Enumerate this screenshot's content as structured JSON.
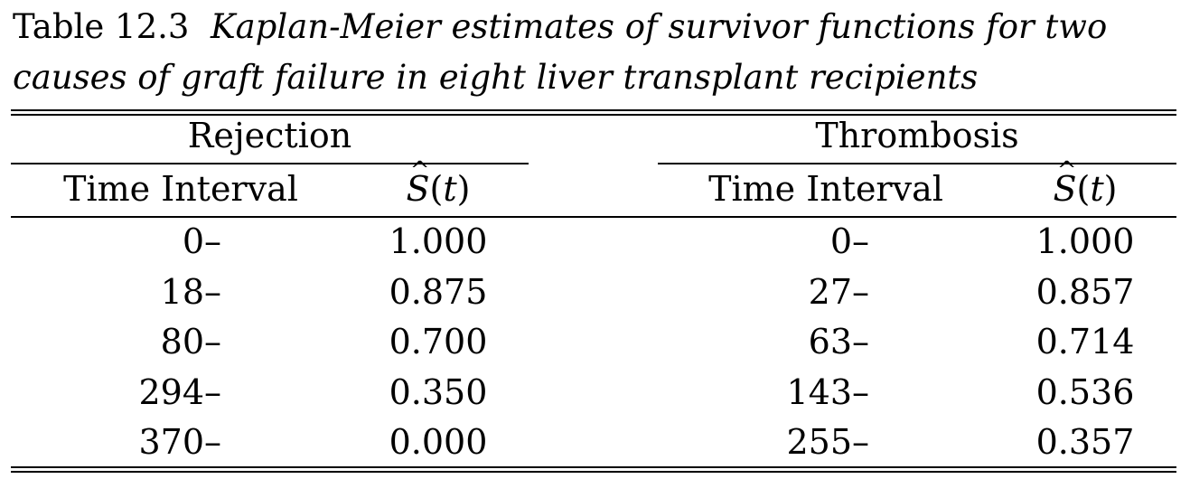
{
  "caption": {
    "number": "Table 12.3",
    "title_line1": "Kaplan-Meier estimates of survivor functions for two",
    "title_line2": "causes of graft failure in eight liver transplant recipients"
  },
  "groups": [
    {
      "name": "Rejection",
      "col_time": "Time Interval",
      "col_s": "S(t)",
      "rows": [
        {
          "time": "0–",
          "s": "1.000"
        },
        {
          "time": "18–",
          "s": "0.875"
        },
        {
          "time": "80–",
          "s": "0.700"
        },
        {
          "time": "294–",
          "s": "0.350"
        },
        {
          "time": "370–",
          "s": "0.000"
        }
      ]
    },
    {
      "name": "Thrombosis",
      "col_time": "Time Interval",
      "col_s": "S(t)",
      "rows": [
        {
          "time": "0–",
          "s": "1.000"
        },
        {
          "time": "27–",
          "s": "0.857"
        },
        {
          "time": "63–",
          "s": "0.714"
        },
        {
          "time": "143–",
          "s": "0.536"
        },
        {
          "time": "255–",
          "s": "0.357"
        }
      ]
    }
  ]
}
